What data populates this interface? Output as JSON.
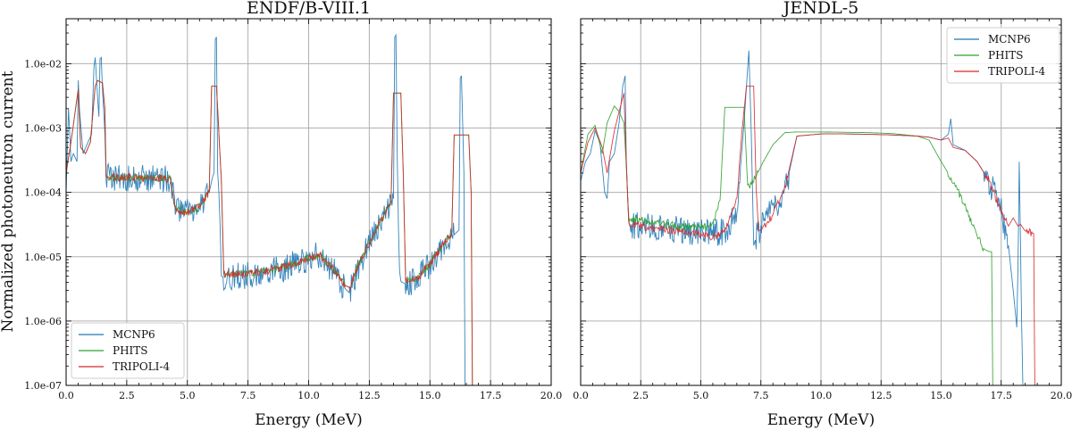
{
  "chart_data": {
    "type": "line",
    "shared_ylabel": "Normalized photoneutron current",
    "panels": [
      {
        "title": "ENDF/B-VIII.1",
        "xlabel": "Energy (MeV)",
        "xlim": [
          0,
          20
        ],
        "ylim": [
          1e-07,
          0.05
        ],
        "yscale": "log",
        "grid": true,
        "legend": "bottom-left",
        "xticks": [
          "0.0",
          "2.5",
          "5.0",
          "7.5",
          "10.0",
          "12.5",
          "15.0",
          "17.5",
          "20.0"
        ],
        "yticks": [
          "1.0e-07",
          "1.0e-06",
          "1.0e-05",
          "1.0e-04",
          "1.0e-03",
          "1.0e-02"
        ],
        "series": [
          {
            "name": "MCNP6",
            "color": "#1f77b4",
            "x": [
              0,
              0.1,
              0.15,
              0.2,
              0.3,
              0.45,
              0.5,
              0.55,
              0.7,
              0.9,
              1.05,
              1.15,
              1.2,
              1.25,
              1.35,
              1.4,
              1.45,
              1.5,
              1.55,
              1.6,
              1.65,
              2.0,
              3.0,
              4.0,
              4.3,
              4.5,
              5.0,
              5.5,
              5.9,
              6.0,
              6.05,
              6.1,
              6.15,
              6.2,
              6.25,
              6.3,
              6.35,
              6.4,
              6.5,
              7.0,
              8.0,
              9.0,
              10.0,
              10.5,
              11.0,
              11.5,
              11.7,
              12.0,
              12.5,
              13.0,
              13.5,
              13.55,
              13.6,
              13.65,
              13.7,
              13.75,
              13.8,
              13.85,
              14.0,
              14.5,
              15.0,
              15.5,
              16.0,
              16.2,
              16.25,
              16.3,
              16.4,
              16.45,
              16.5
            ],
            "y": [
              0.0001,
              0.002,
              0.0008,
              0.0003,
              0.0004,
              0.0003,
              0.0055,
              0.002,
              0.0004,
              0.0006,
              0.0008,
              0.009,
              0.0125,
              0.006,
              0.0015,
              0.012,
              0.0125,
              0.004,
              0.0018,
              0.0008,
              0.000175,
              0.000172,
              0.00017,
              0.000165,
              0.00016,
              5.5e-05,
              4.8e-05,
              6e-05,
              0.0001,
              0.00015,
              0.00018,
              0.0002,
              0.024,
              0.026,
              0.0002,
              0.0001,
              3e-05,
              5e-06,
              4.8e-06,
              4.8e-06,
              5.5e-06,
              6.8e-06,
              9.5e-06,
              1.05e-05,
              6e-06,
              3.2e-06,
              2.7e-06,
              6.5e-06,
              1.6e-05,
              3.6e-05,
              8e-05,
              0.026,
              0.028,
              0.0004,
              3e-05,
              6e-06,
              4.2e-06,
              4e-06,
              3.8e-06,
              4.5e-06,
              7.5e-06,
              1.4e-05,
              2.2e-05,
              2.6e-05,
              0.006,
              0.0065,
              0.0002,
              1e-07,
              1e-07
            ]
          },
          {
            "name": "PHITS",
            "color": "#2ca02c",
            "x": [
              0,
              0.2,
              0.5,
              0.6,
              0.8,
              1.0,
              1.2,
              1.3,
              1.5,
              1.6,
              1.65,
              2.0,
              3.0,
              4.0,
              4.3,
              4.5,
              5.0,
              5.5,
              5.9,
              6.0,
              6.2,
              6.4,
              6.5,
              7.0,
              8.0,
              9.0,
              10.0,
              10.5,
              11.0,
              11.5,
              11.7,
              12.0,
              12.5,
              13.0,
              13.4,
              13.5,
              13.8,
              13.9,
              14.0,
              14.5,
              15.0,
              15.5,
              15.9,
              16.0,
              16.6,
              16.7,
              16.75
            ],
            "y": [
              0.0002,
              0.0006,
              0.004,
              0.0005,
              0.0004,
              0.0006,
              0.0045,
              0.0055,
              0.005,
              0.002,
              0.000175,
              0.000172,
              0.00017,
              0.000165,
              0.00016,
              5.5e-05,
              4.8e-05,
              6e-05,
              0.0001,
              0.0045,
              0.0045,
              0.00015,
              5.3e-06,
              5.5e-06,
              5.7e-06,
              7e-06,
              9.5e-06,
              1.02e-05,
              6.5e-06,
              3.6e-06,
              3.3e-06,
              6.8e-06,
              1.65e-05,
              3.7e-05,
              7.5e-05,
              0.0035,
              0.0035,
              0.0002,
              4.2e-06,
              4.7e-06,
              7.8e-06,
              1.45e-05,
              2.4e-05,
              0.00078,
              0.00078,
              0.0001,
              1e-07
            ]
          },
          {
            "name": "TRIPOLI-4",
            "color": "#d62728",
            "x": [
              0,
              0.2,
              0.5,
              0.6,
              0.8,
              1.0,
              1.2,
              1.3,
              1.5,
              1.6,
              1.65,
              2.0,
              3.0,
              4.0,
              4.3,
              4.5,
              5.0,
              5.5,
              5.9,
              6.0,
              6.2,
              6.4,
              6.5,
              7.0,
              8.0,
              9.0,
              10.0,
              10.5,
              11.0,
              11.5,
              11.7,
              12.0,
              12.5,
              13.0,
              13.4,
              13.5,
              13.8,
              13.9,
              14.0,
              14.5,
              15.0,
              15.5,
              15.9,
              16.0,
              16.6,
              16.7,
              16.75
            ],
            "y": [
              0.0002,
              0.0006,
              0.004,
              0.0005,
              0.0004,
              0.0006,
              0.0045,
              0.0055,
              0.005,
              0.002,
              0.000175,
              0.000172,
              0.00017,
              0.000165,
              0.00016,
              5.5e-05,
              4.8e-05,
              6e-05,
              0.0001,
              0.0045,
              0.0045,
              0.00015,
              5.3e-06,
              5.5e-06,
              5.7e-06,
              7e-06,
              9.5e-06,
              1.02e-05,
              6.5e-06,
              3.6e-06,
              3.3e-06,
              6.8e-06,
              1.65e-05,
              3.7e-05,
              7.5e-05,
              0.0035,
              0.0035,
              0.0002,
              4.2e-06,
              4.7e-06,
              7.8e-06,
              1.45e-05,
              2.4e-05,
              0.00078,
              0.00078,
              0.0001,
              1e-07
            ]
          }
        ]
      },
      {
        "title": "JENDL-5",
        "xlabel": "Energy (MeV)",
        "xlim": [
          0,
          20
        ],
        "ylim": [
          1e-07,
          0.05
        ],
        "yscale": "log",
        "grid": true,
        "legend": "top-right",
        "xticks": [
          "0.0",
          "2.5",
          "5.0",
          "7.5",
          "10.0",
          "12.5",
          "15.0",
          "17.5",
          "20.0"
        ],
        "series": [
          {
            "name": "MCNP6",
            "color": "#1f77b4",
            "x": [
              0,
              0.2,
              0.4,
              0.6,
              0.8,
              1.0,
              1.1,
              1.2,
              1.4,
              1.6,
              1.75,
              1.85,
              1.9,
              2.0,
              2.5,
              3.0,
              4.0,
              5.0,
              5.5,
              6.0,
              6.5,
              6.8,
              6.9,
              7.0,
              7.1,
              7.2,
              7.3,
              7.5,
              8.0,
              8.5,
              9.0,
              10.0,
              11.0,
              12.0,
              13.0,
              14.0,
              14.5,
              15.0,
              15.3,
              15.4,
              15.5,
              16.0,
              16.5,
              17.0,
              17.5,
              17.8,
              18.0,
              18.15,
              18.2,
              18.25,
              18.3,
              18.35,
              18.4,
              18.45
            ],
            "y": [
              0.00015,
              0.0003,
              0.0004,
              0.0009,
              0.0006,
              0.0001,
              8e-05,
              0.0003,
              0.0004,
              0.0012,
              0.0045,
              0.0065,
              0.0003,
              3.2e-05,
              3e-05,
              2.8e-05,
              2.6e-05,
              2.4e-05,
              2.3e-05,
              2.5e-05,
              5e-05,
              0.0012,
              0.0045,
              0.016,
              0.0008,
              1.5e-05,
              2e-05,
              3e-05,
              5.5e-05,
              0.0001,
              0.00075,
              0.00081,
              0.00081,
              0.0008,
              0.00078,
              0.00075,
              0.00072,
              0.00065,
              0.0008,
              0.0014,
              0.00055,
              0.00045,
              0.0003,
              0.00015,
              5e-05,
              1.5e-05,
              3e-06,
              8e-07,
              8e-06,
              0.0003,
              2e-05,
              1e-06,
              1e-07,
              1e-07
            ]
          },
          {
            "name": "PHITS",
            "color": "#2ca02c",
            "x": [
              0,
              0.3,
              0.6,
              0.9,
              1.1,
              1.4,
              1.6,
              1.8,
              1.9,
              2.0,
              2.5,
              3.0,
              4.0,
              5.0,
              5.5,
              5.8,
              6.0,
              6.5,
              6.8,
              6.95,
              7.2,
              7.6,
              8.0,
              8.5,
              9.0,
              10.0,
              11.0,
              12.0,
              13.0,
              14.0,
              14.5,
              15.0,
              15.5,
              16.0,
              16.5,
              16.8,
              17.0,
              17.1,
              17.15
            ],
            "y": [
              0.0002,
              0.0008,
              0.0011,
              0.0004,
              0.0012,
              0.0022,
              0.0018,
              0.0012,
              0.00025,
              3.8e-05,
              3.7e-05,
              3.4e-05,
              3e-05,
              2.8e-05,
              3e-05,
              8e-05,
              0.0021,
              0.0021,
              0.0021,
              0.00012,
              0.00015,
              0.0003,
              0.00055,
              0.00085,
              0.00087,
              0.00087,
              0.00086,
              0.00085,
              0.00082,
              0.00075,
              0.00065,
              0.0003,
              0.00015,
              6e-05,
              2e-05,
              1.3e-05,
              1.2e-05,
              1.2e-05,
              1e-07
            ]
          },
          {
            "name": "TRIPOLI-4",
            "color": "#d62728",
            "x": [
              0,
              0.3,
              0.6,
              0.9,
              1.1,
              1.4,
              1.6,
              1.8,
              1.9,
              2.0,
              2.5,
              3.0,
              4.0,
              5.0,
              5.5,
              6.0,
              6.5,
              6.7,
              6.9,
              7.2,
              7.3,
              7.4,
              7.6,
              8.0,
              8.3,
              8.5,
              9.0,
              10.0,
              11.0,
              12.0,
              13.0,
              14.0,
              14.5,
              15.0,
              15.3,
              15.5,
              16.0,
              16.5,
              17.0,
              17.5,
              17.8,
              18.0,
              18.2,
              18.3,
              18.5,
              18.8,
              18.85,
              18.9
            ],
            "y": [
              0.0002,
              0.0006,
              0.001,
              0.0005,
              0.0002,
              0.0009,
              0.0018,
              0.0035,
              0.0003,
              3.2e-05,
              3e-05,
              2.8e-05,
              2.5e-05,
              2.2e-05,
              2e-05,
              2.5e-05,
              8e-05,
              0.0008,
              0.0045,
              0.0045,
              0.00012,
              2.5e-05,
              2.8e-05,
              4.5e-05,
              8e-05,
              0.00012,
              0.00075,
              0.00081,
              0.00081,
              0.0008,
              0.00078,
              0.00075,
              0.00072,
              0.00065,
              0.0007,
              0.0005,
              0.00045,
              0.0003,
              0.00015,
              5e-05,
              3e-05,
              4e-05,
              3e-05,
              3.2e-05,
              2.5e-05,
              2.3e-05,
              2.3e-05,
              1e-07
            ]
          }
        ]
      }
    ]
  }
}
